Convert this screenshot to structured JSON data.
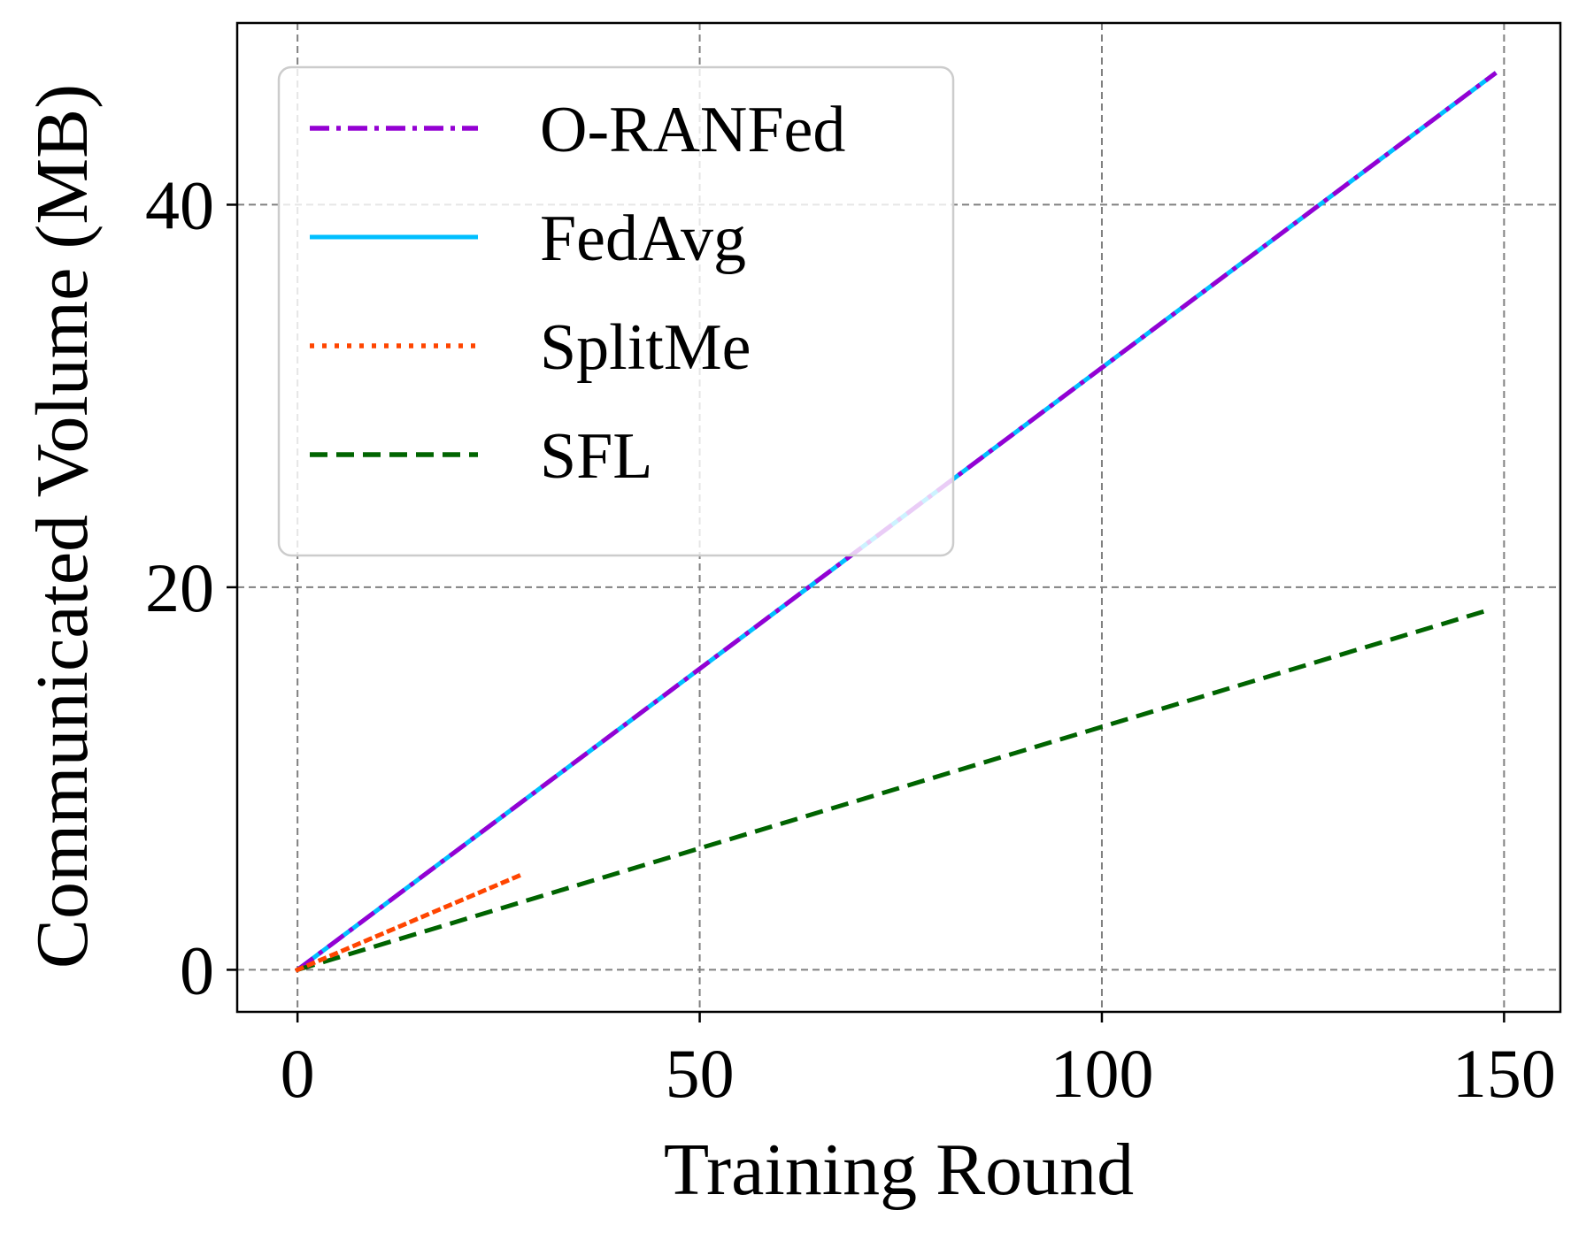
{
  "chart_data": {
    "type": "line",
    "title": "",
    "xlabel": "Training Round",
    "ylabel": "Communicated Volume (MB)",
    "xlim": [
      -7.5,
      157
    ],
    "ylim": [
      -2.2,
      49.5
    ],
    "xticks": [
      0,
      50,
      100,
      150
    ],
    "yticks": [
      0,
      20,
      40
    ],
    "xtick_labels": [
      "0",
      "50",
      "100",
      "150"
    ],
    "ytick_labels": [
      "0",
      "20",
      "40"
    ],
    "grid": true,
    "legend_position": "upper-left",
    "series": [
      {
        "name": "O-RANFed",
        "color": "#9400D3",
        "style": "dashdot",
        "x": [
          0,
          149
        ],
        "y": [
          0,
          46.9
        ]
      },
      {
        "name": "FedAvg",
        "color": "#00BFFF",
        "style": "solid",
        "x": [
          0,
          149
        ],
        "y": [
          0,
          46.9
        ]
      },
      {
        "name": "SplitMe",
        "color": "#FF4500",
        "style": "dotted",
        "x": [
          0,
          28
        ],
        "y": [
          0,
          5.0
        ]
      },
      {
        "name": "SFL",
        "color": "#006400",
        "style": "dashed",
        "x": [
          0,
          148
        ],
        "y": [
          0,
          18.8
        ]
      }
    ]
  }
}
